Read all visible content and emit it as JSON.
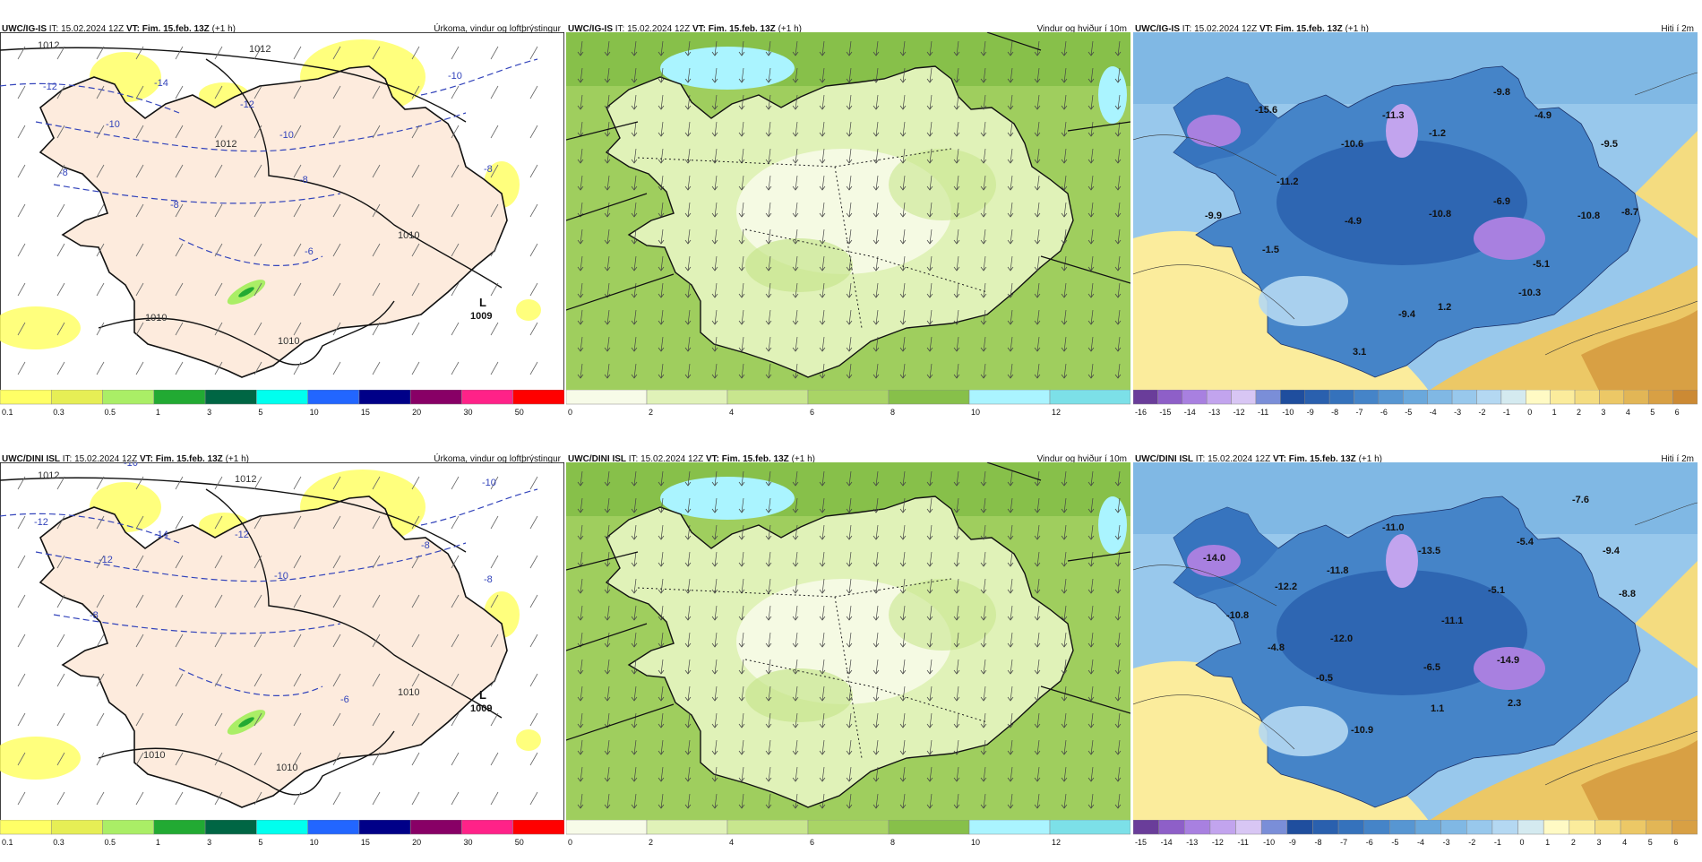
{
  "panels": [
    {
      "id": "p1",
      "row": 0,
      "col": 0,
      "kind": "precip",
      "source": "UWC/IG-IS",
      "it_label": "IT:",
      "it_value": "15.02.2024 12Z",
      "vt_label": "VT:",
      "vt_value": "Fim. 15.feb. 13Z",
      "lead": "(+1 h)",
      "title": "Úrkoma, vindur og loftþrýstingur",
      "pressure_labels": [
        "1012",
        "1012",
        "1012",
        "1010",
        "1010",
        "1010"
      ],
      "temp_labels": [
        "-14",
        "-12",
        "-12",
        "-10",
        "-10",
        "-10",
        "-8",
        "-8",
        "-8",
        "-8",
        "-6"
      ],
      "low_letter": "L",
      "low_value": "1009",
      "colorbar_labels": [
        "0.1",
        "0.3",
        "0.5",
        "1",
        "3",
        "5",
        "10",
        "15",
        "20",
        "30",
        "50"
      ]
    },
    {
      "id": "p2",
      "row": 0,
      "col": 1,
      "kind": "wind",
      "source": "UWC/IG-IS",
      "it_label": "IT:",
      "it_value": "15.02.2024 12Z",
      "vt_label": "VT:",
      "vt_value": "Fim. 15.feb. 13Z",
      "lead": "(+1 h)",
      "title": "Vindur og hviður í 10m",
      "colorbar_labels": [
        "0",
        "2",
        "4",
        "6",
        "8",
        "10",
        "12"
      ]
    },
    {
      "id": "p3",
      "row": 0,
      "col": 2,
      "kind": "temp",
      "source": "UWC/IG-IS",
      "it_label": "IT:",
      "it_value": "15.02.2024 12Z",
      "vt_label": "VT:",
      "vt_value": "Fim. 15.feb. 13Z",
      "lead": "(+1 h)",
      "title": "Hiti í 2m",
      "values": [
        "-15.6",
        "-11.3",
        "-9.8",
        "-4.9",
        "-9.5",
        "-10.6",
        "-11.2",
        "-1.2",
        "-9.9",
        "-4.9",
        "-10.8",
        "-6.9",
        "-10.8",
        "-8.7",
        "-1.5",
        "-5.1",
        "-10.3",
        "-9.4",
        "1.2",
        "3.1"
      ],
      "colorbar_labels": [
        "-16",
        "-15",
        "-14",
        "-13",
        "-12",
        "-11",
        "-10",
        "-9",
        "-8",
        "-7",
        "-6",
        "-5",
        "-4",
        "-3",
        "-2",
        "-1",
        "0",
        "1",
        "2",
        "3",
        "4",
        "5",
        "6"
      ]
    },
    {
      "id": "p4",
      "row": 1,
      "col": 0,
      "kind": "precip",
      "source": "UWC/DINI ISL",
      "it_label": "IT:",
      "it_value": "15.02.2024 12Z",
      "vt_label": "VT:",
      "vt_value": "Fim. 15.feb. 13Z",
      "lead": "(+1 h)",
      "title": "Úrkoma, vindur og loftþrýstingur",
      "pressure_labels": [
        "1012",
        "1012",
        "1010",
        "1010",
        "1010"
      ],
      "temp_labels": [
        "-16",
        "-14",
        "-12",
        "-12",
        "-12",
        "-10",
        "-10",
        "-8",
        "-8",
        "-8",
        "-6"
      ],
      "low_letter": "L",
      "low_value": "1009",
      "colorbar_labels": [
        "0.1",
        "0.3",
        "0.5",
        "1",
        "3",
        "5",
        "10",
        "15",
        "20",
        "30",
        "50"
      ]
    },
    {
      "id": "p5",
      "row": 1,
      "col": 1,
      "kind": "wind",
      "source": "UWC/DINI ISL",
      "it_label": "IT:",
      "it_value": "15.02.2024 12Z",
      "vt_label": "VT:",
      "vt_value": "Fim. 15.feb. 13Z",
      "lead": "(+1 h)",
      "title": "Vindur og hviður í 10m",
      "colorbar_labels": [
        "0",
        "2",
        "4",
        "6",
        "8",
        "10",
        "12"
      ]
    },
    {
      "id": "p6",
      "row": 1,
      "col": 2,
      "kind": "temp",
      "source": "UWC/DINI ISL",
      "it_label": "IT:",
      "it_value": "15.02.2024 12Z",
      "vt_label": "VT:",
      "vt_value": "Fim. 15.feb. 13Z",
      "lead": "(+1 h)",
      "title": "Hiti í 2m",
      "values": [
        "-14.0",
        "-11.0",
        "-7.6",
        "-13.5",
        "-11.8",
        "-5.4",
        "-9.4",
        "-12.2",
        "-5.1",
        "-8.8",
        "-10.8",
        "-11.1",
        "-12.0",
        "-4.8",
        "-6.5",
        "-14.9",
        "-0.5",
        "1.1",
        "2.3",
        "-10.9"
      ],
      "colorbar_labels": [
        "-15",
        "-14",
        "-13",
        "-12",
        "-11",
        "-10",
        "-9",
        "-8",
        "-7",
        "-6",
        "-5",
        "-4",
        "-3",
        "-2",
        "-1",
        "0",
        "1",
        "2",
        "3",
        "4",
        "5",
        "6"
      ]
    }
  ],
  "colors": {
    "precip_scale": [
      "#ffff66",
      "#e6ee55",
      "#aaee66",
      "#22aa33",
      "#006644",
      "#00ffee",
      "#2266ff",
      "#000088",
      "#880066",
      "#ff2288",
      "#ff0000"
    ],
    "wind_scale": [
      "#f7fbe8",
      "#e0f2b8",
      "#c8e68e",
      "#a9d466",
      "#87c04a",
      "#aaf4ff",
      "#7ce0e8",
      "#55c8c8"
    ],
    "temp_scale": [
      "#6a3d9a",
      "#8e5fc8",
      "#a880e0",
      "#c2a4ee",
      "#d8c6f4",
      "#7a8ed8",
      "#1f4e9e",
      "#2a60ae",
      "#3572bc",
      "#4584c8",
      "#5796d2",
      "#6aa8dc",
      "#80b8e4",
      "#98c8ec",
      "#b4d8f2",
      "#d4eaf0",
      "#fffac4",
      "#fbec9c",
      "#f4dc80",
      "#ecc866",
      "#e2b656",
      "#d8a044",
      "#cc8a34"
    ],
    "land_precip": "#fdebdd",
    "pressure_line": "#111111",
    "temp_line": "#3344bb"
  }
}
